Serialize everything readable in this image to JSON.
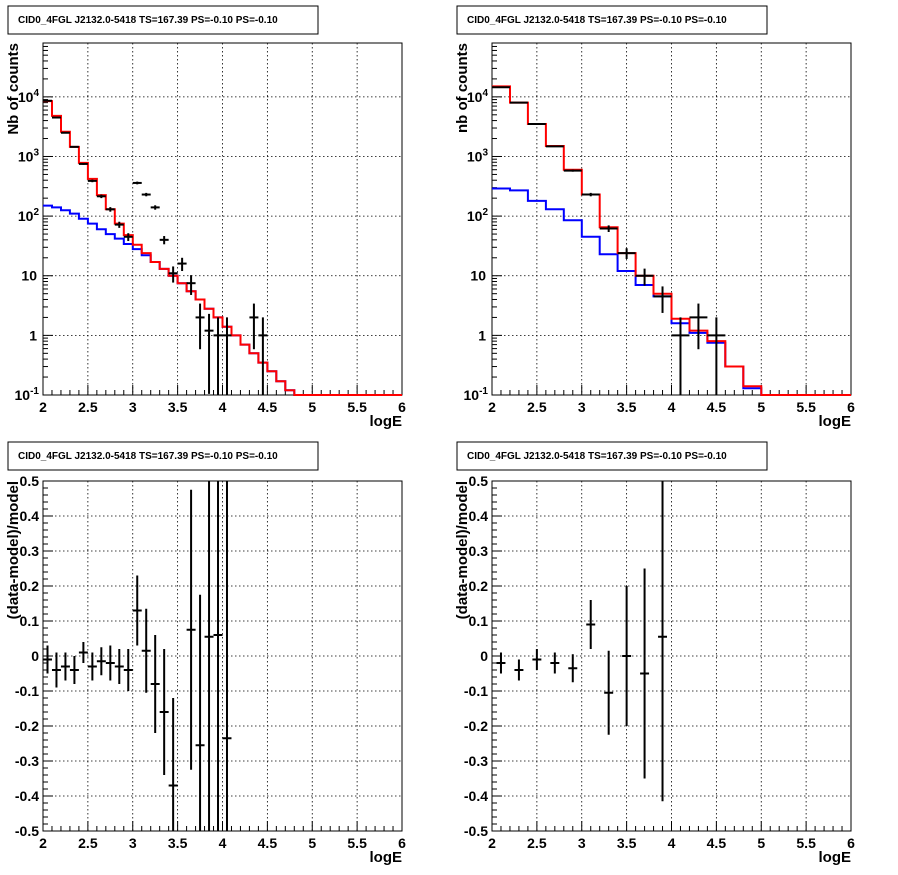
{
  "chart_data": [
    {
      "type": "histogram",
      "title": "CID0_4FGL J2132.0-5418 TS=167.39 PS=-0.10 PS=-0.10",
      "xlabel": "logE",
      "ylabel": "Nb of counts",
      "xlim": [
        2,
        6
      ],
      "ylim": [
        0.1,
        80000
      ],
      "yscale": "log",
      "grid": true,
      "x_ticks": [
        "2",
        "2.5",
        "3",
        "3.5",
        "4",
        "4.5",
        "5",
        "5.5",
        "6"
      ],
      "y_ticks": [
        {
          "v": 0.1,
          "label": "10",
          "sup": "-1"
        },
        {
          "v": 1,
          "label": "1",
          "sup": ""
        },
        {
          "v": 10,
          "label": "10",
          "sup": ""
        },
        {
          "v": 100,
          "label": "10",
          "sup": "2"
        },
        {
          "v": 1000,
          "label": "10",
          "sup": "3"
        },
        {
          "v": 10000,
          "label": "10",
          "sup": "4"
        }
      ],
      "bin_edges": [
        2.0,
        2.1,
        2.2,
        2.3,
        2.4,
        2.5,
        2.6,
        2.7,
        2.8,
        2.9,
        3.0,
        3.1,
        3.2,
        3.3,
        3.4,
        3.5,
        3.6,
        3.7,
        3.8,
        3.9,
        4.0,
        4.1,
        4.2,
        4.3,
        4.4,
        4.5,
        4.6,
        4.7,
        4.8,
        4.9,
        5.0,
        5.1,
        5.2,
        5.3,
        5.4,
        5.5,
        5.6,
        5.7,
        5.8,
        5.9,
        6.0
      ],
      "series": [
        {
          "color": "#0000ff",
          "style": "step",
          "values": [
            150,
            140,
            125,
            110,
            90,
            75,
            60,
            50,
            42,
            34,
            28,
            22,
            17,
            13,
            10,
            7.5,
            5.5,
            4,
            2.8,
            2,
            1.4,
            1.0,
            0.7,
            0.5,
            0.35,
            0.25,
            0.17,
            0.12,
            0.1,
            0.1,
            0.1,
            0.1,
            0.1,
            0.1,
            0.1,
            0.1,
            0.1,
            0.1,
            0.1,
            0.1
          ]
        },
        {
          "color": "#ff0000",
          "style": "step",
          "values": [
            8500,
            4800,
            2600,
            1450,
            780,
            420,
            225,
            130,
            75,
            48,
            33,
            24,
            17,
            13,
            10,
            7.5,
            5.5,
            4,
            2.8,
            2,
            1.4,
            1.0,
            0.7,
            0.5,
            0.35,
            0.25,
            0.17,
            0.12,
            0.1,
            0.1,
            0.1,
            0.1,
            0.1,
            0.1,
            0.1,
            0.1,
            0.1,
            0.1,
            0.1,
            0.1
          ]
        }
      ],
      "points": [
        {
          "x": 2.05,
          "y": 8600
        },
        {
          "x": 2.15,
          "y": 4500
        },
        {
          "x": 2.25,
          "y": 2500
        },
        {
          "x": 2.35,
          "y": 1450
        },
        {
          "x": 2.45,
          "y": 750
        },
        {
          "x": 2.55,
          "y": 390
        },
        {
          "x": 2.65,
          "y": 215
        },
        {
          "x": 2.75,
          "y": 130
        },
        {
          "x": 2.85,
          "y": 72
        },
        {
          "x": 2.95,
          "y": 45
        },
        {
          "x": 3.05,
          "y": 360
        },
        {
          "x": 3.15,
          "y": 230
        },
        {
          "x": 3.25,
          "y": 140
        },
        {
          "x": 3.35,
          "y": 40
        },
        {
          "x": 3.45,
          "y": 11
        },
        {
          "x": 3.55,
          "y": 16
        },
        {
          "x": 3.65,
          "y": 7.5
        },
        {
          "x": 3.75,
          "y": 2
        },
        {
          "x": 3.85,
          "y": 1.2
        },
        {
          "x": 3.95,
          "y": 1
        },
        {
          "x": 4.05,
          "y": 1
        },
        {
          "x": 4.35,
          "y": 2
        },
        {
          "x": 4.45,
          "y": 1
        }
      ]
    },
    {
      "type": "histogram",
      "title": "CID0_4FGL J2132.0-5418 TS=167.39 PS=-0.10 PS=-0.10",
      "xlabel": "logE",
      "ylabel": "nb of counts",
      "xlim": [
        2,
        6
      ],
      "ylim": [
        0.1,
        80000
      ],
      "yscale": "log",
      "grid": true,
      "x_ticks": [
        "2",
        "2.5",
        "3",
        "3.5",
        "4",
        "4.5",
        "5",
        "5.5",
        "6"
      ],
      "y_ticks": [
        {
          "v": 0.1,
          "label": "10",
          "sup": "-1"
        },
        {
          "v": 1,
          "label": "1",
          "sup": ""
        },
        {
          "v": 10,
          "label": "10",
          "sup": ""
        },
        {
          "v": 100,
          "label": "10",
          "sup": "2"
        },
        {
          "v": 1000,
          "label": "10",
          "sup": "3"
        },
        {
          "v": 10000,
          "label": "10",
          "sup": "4"
        }
      ],
      "bin_edges": [
        2.0,
        2.2,
        2.4,
        2.6,
        2.8,
        3.0,
        3.2,
        3.4,
        3.6,
        3.8,
        4.0,
        4.2,
        4.4,
        4.6,
        4.8,
        5.0,
        5.2,
        5.4,
        5.6,
        5.8,
        6.0
      ],
      "series": [
        {
          "color": "#0000ff",
          "style": "step",
          "values": [
            290,
            270,
            180,
            130,
            85,
            45,
            23,
            12,
            7,
            4.5,
            1.6,
            1.1,
            0.75,
            0.3,
            0.13,
            0.1,
            0.1,
            0.1,
            0.1,
            0.1
          ]
        },
        {
          "color": "#ff0000",
          "style": "step",
          "values": [
            15000,
            8000,
            3500,
            1500,
            600,
            230,
            65,
            24,
            10,
            5.0,
            1.9,
            1.2,
            0.8,
            0.3,
            0.14,
            0.1,
            0.1,
            0.1,
            0.1,
            0.1
          ]
        }
      ],
      "points": [
        {
          "x": 2.1,
          "y": 14500
        },
        {
          "x": 2.3,
          "y": 8000
        },
        {
          "x": 2.5,
          "y": 3500
        },
        {
          "x": 2.7,
          "y": 1480
        },
        {
          "x": 2.9,
          "y": 580
        },
        {
          "x": 3.1,
          "y": 230
        },
        {
          "x": 3.3,
          "y": 62
        },
        {
          "x": 3.5,
          "y": 24
        },
        {
          "x": 3.7,
          "y": 10
        },
        {
          "x": 3.9,
          "y": 4.5
        },
        {
          "x": 4.1,
          "y": 1
        },
        {
          "x": 4.3,
          "y": 2
        },
        {
          "x": 4.5,
          "y": 1
        }
      ]
    },
    {
      "type": "scatter",
      "title": "CID0_4FGL J2132.0-5418 TS=167.39 PS=-0.10 PS=-0.10",
      "xlabel": "logE",
      "ylabel": "(data-model)/model",
      "xlim": [
        2,
        6
      ],
      "ylim": [
        -0.5,
        0.5
      ],
      "grid": true,
      "x_ticks": [
        "2",
        "2.5",
        "3",
        "3.5",
        "4",
        "4.5",
        "5",
        "5.5",
        "6"
      ],
      "y_ticks": [
        "-0.5",
        "-0.4",
        "-0.3",
        "-0.2",
        "-0.1",
        "0",
        "0.1",
        "0.2",
        "0.3",
        "0.4",
        "0.5"
      ],
      "points": [
        {
          "x": 2.05,
          "y": -0.01,
          "err": 0.04
        },
        {
          "x": 2.15,
          "y": -0.04,
          "err": 0.05
        },
        {
          "x": 2.25,
          "y": -0.03,
          "err": 0.04
        },
        {
          "x": 2.35,
          "y": -0.04,
          "err": 0.04
        },
        {
          "x": 2.45,
          "y": 0.01,
          "err": 0.03
        },
        {
          "x": 2.55,
          "y": -0.03,
          "err": 0.04
        },
        {
          "x": 2.65,
          "y": -0.015,
          "err": 0.04
        },
        {
          "x": 2.75,
          "y": -0.02,
          "err": 0.05
        },
        {
          "x": 2.85,
          "y": -0.03,
          "err": 0.05
        },
        {
          "x": 2.95,
          "y": -0.04,
          "err": 0.06
        },
        {
          "x": 3.05,
          "y": 0.13,
          "err": 0.1
        },
        {
          "x": 3.15,
          "y": 0.015,
          "err": 0.12
        },
        {
          "x": 3.25,
          "y": -0.08,
          "err": 0.14
        },
        {
          "x": 3.35,
          "y": -0.16,
          "err": 0.18
        },
        {
          "x": 3.45,
          "y": -0.37,
          "err": 0.25
        },
        {
          "x": 3.65,
          "y": 0.075,
          "err": 0.4
        },
        {
          "x": 3.75,
          "y": -0.255,
          "err": 0.43
        },
        {
          "x": 3.85,
          "y": 0.055,
          "err": 0.8
        },
        {
          "x": 3.95,
          "y": 0.06,
          "err": 0.9
        },
        {
          "x": 4.05,
          "y": -0.235,
          "err": 0.9
        }
      ]
    },
    {
      "type": "scatter",
      "title": "CID0_4FGL J2132.0-5418 TS=167.39 PS=-0.10 PS=-0.10",
      "xlabel": "logE",
      "ylabel": "(data-model)/model",
      "xlim": [
        2,
        6
      ],
      "ylim": [
        -0.5,
        0.5
      ],
      "grid": true,
      "x_ticks": [
        "2",
        "2.5",
        "3",
        "3.5",
        "4",
        "4.5",
        "5",
        "5.5",
        "6"
      ],
      "y_ticks": [
        "-0.5",
        "-0.4",
        "-0.3",
        "-0.2",
        "-0.1",
        "0",
        "0.1",
        "0.2",
        "0.3",
        "0.4",
        "0.5"
      ],
      "points": [
        {
          "x": 2.1,
          "y": -0.02,
          "err": 0.03
        },
        {
          "x": 2.3,
          "y": -0.04,
          "err": 0.03
        },
        {
          "x": 2.5,
          "y": -0.01,
          "err": 0.03
        },
        {
          "x": 2.7,
          "y": -0.02,
          "err": 0.03
        },
        {
          "x": 2.9,
          "y": -0.035,
          "err": 0.04
        },
        {
          "x": 3.1,
          "y": 0.09,
          "err": 0.07
        },
        {
          "x": 3.3,
          "y": -0.105,
          "err": 0.12
        },
        {
          "x": 3.5,
          "y": 0.0,
          "err": 0.2
        },
        {
          "x": 3.7,
          "y": -0.05,
          "err": 0.3
        },
        {
          "x": 3.9,
          "y": 0.055,
          "err": 0.47
        }
      ]
    }
  ]
}
